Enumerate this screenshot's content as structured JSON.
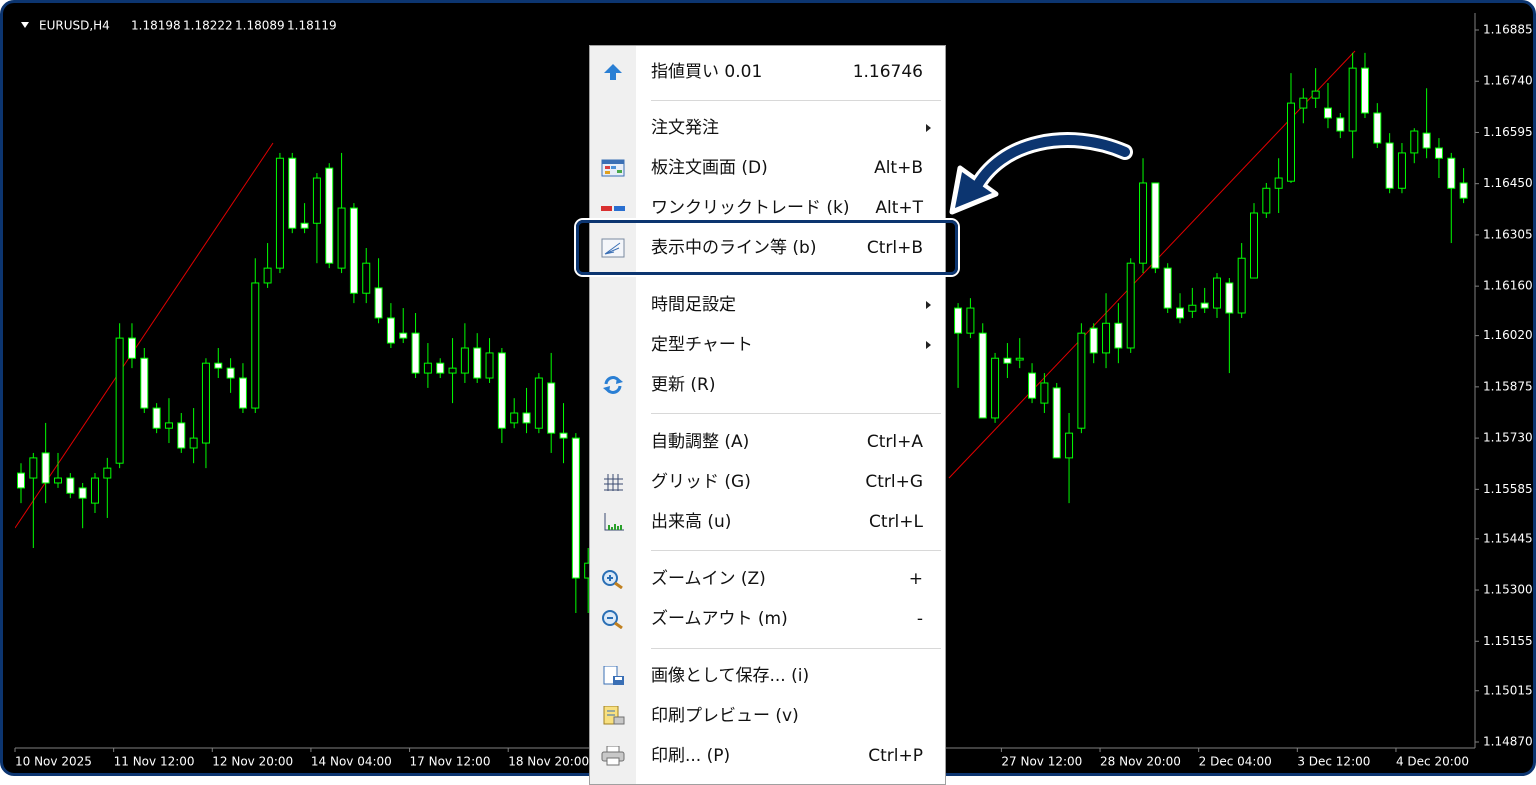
{
  "header": {
    "symbol": "EURUSD,H4",
    "ohlc": [
      1.18198,
      1.18222,
      1.18089,
      1.18119
    ]
  },
  "chart_data": {
    "type": "candlestick",
    "ylim": [
      1.14853,
      1.16933
    ],
    "yticks": [
      {
        "value": 1.16885,
        "label": "1.16885"
      },
      {
        "value": 1.1674,
        "label": "1.16740"
      },
      {
        "value": 1.16595,
        "label": "1.16595"
      },
      {
        "value": 1.1645,
        "label": "1.16450"
      },
      {
        "value": 1.16305,
        "label": "1.16305"
      },
      {
        "value": 1.1616,
        "label": "1.16160"
      },
      {
        "value": 1.1602,
        "label": "1.16020"
      },
      {
        "value": 1.15875,
        "label": "1.15875"
      },
      {
        "value": 1.1573,
        "label": "1.15730"
      },
      {
        "value": 1.15585,
        "label": "1.15585"
      },
      {
        "value": 1.15445,
        "label": "1.15445"
      },
      {
        "value": 1.153,
        "label": "1.15300"
      },
      {
        "value": 1.15155,
        "label": "1.15155"
      },
      {
        "value": 1.15015,
        "label": "1.15015"
      },
      {
        "value": 1.1487,
        "label": "1.14870"
      }
    ],
    "x_labels": [
      "10 Nov 2025",
      "11 Nov 12:00",
      "12 Nov 20:00",
      "14 Nov 04:00",
      "17 Nov 12:00",
      "18 Nov 20:00",
      null,
      null,
      null,
      null,
      "27 Nov 12:00",
      "28 Nov 20:00",
      "2 Dec 04:00",
      "3 Dec 12:00",
      "4 Dec 20:00"
    ],
    "color": "#00ff00",
    "open": [
      1.15631,
      1.15617,
      1.15688,
      1.15603,
      1.15617,
      1.15589,
      1.15546,
      1.15617,
      1.15659,
      1.16013,
      1.15956,
      1.15815,
      1.15758,
      1.15773,
      1.15702,
      1.15716,
      1.15942,
      1.15928,
      1.159,
      1.15815,
      1.16169,
      1.16211,
      1.16522,
      1.16338,
      1.16338,
      1.16494,
      1.16211,
      1.16381,
      1.1614,
      1.16155,
      1.1607,
      1.16027,
      1.16027,
      1.15914,
      1.15942,
      1.15914,
      1.15914,
      1.15985,
      1.159,
      1.15971,
      1.15773,
      1.15801,
      1.15758,
      1.15886,
      1.15744,
      1.1573,
      1.15334,
      null,
      null,
      null,
      null,
      null,
      null,
      null,
      null,
      null,
      null,
      null,
      null,
      null,
      null,
      null,
      null,
      null,
      null,
      null,
      null,
      null,
      null,
      null,
      null,
      null,
      null,
      null,
      null,
      null,
      1.16098,
      1.16027,
      1.16027,
      1.15787,
      1.15956,
      1.15951,
      1.15914,
      1.15829,
      1.15872,
      1.15674,
      1.15758,
      1.16041,
      1.15971,
      1.16055,
      1.15985,
      1.16225,
      1.16452,
      1.16211,
      1.16098,
      1.16089,
      1.16112,
      1.16098,
      1.16169,
      1.16084,
      1.16183,
      1.16367,
      1.16437,
      1.16457,
      1.16664,
      1.16692,
      1.16664,
      1.16636,
      1.16599,
      1.16777,
      1.1665,
      1.16565,
      1.16437,
      1.16537,
      1.16593,
      1.16551,
      1.16522,
      1.16452
    ],
    "high": [
      1.15659,
      1.15688,
      1.15773,
      1.15688,
      1.15631,
      1.15603,
      1.15631,
      1.15674,
      1.16055,
      1.16055,
      1.15985,
      1.15829,
      1.15843,
      1.15801,
      1.15815,
      1.15956,
      1.15985,
      1.15956,
      1.15942,
      1.16239,
      1.16282,
      1.16537,
      1.16537,
      1.16395,
      1.1648,
      1.16508,
      1.16537,
      1.16395,
      1.16268,
      1.16239,
      1.16112,
      1.16098,
      1.16084,
      1.15999,
      1.15956,
      1.16013,
      1.16055,
      1.16027,
      1.16013,
      1.15985,
      1.15843,
      1.15872,
      1.15914,
      1.15971,
      1.15829,
      1.15744,
      1.15419,
      null,
      null,
      null,
      null,
      null,
      null,
      null,
      null,
      null,
      null,
      null,
      null,
      null,
      null,
      null,
      null,
      null,
      null,
      null,
      null,
      null,
      null,
      null,
      null,
      null,
      null,
      null,
      null,
      null,
      1.16112,
      1.16126,
      1.16055,
      1.15971,
      1.15999,
      1.16013,
      1.15942,
      1.15914,
      1.15886,
      1.15801,
      1.16055,
      1.16055,
      1.1614,
      1.16112,
      1.16239,
      1.16522,
      1.16452,
      1.16225,
      1.1614,
      1.16155,
      1.16155,
      1.16197,
      1.16183,
      1.16282,
      1.16395,
      1.16452,
      1.16522,
      1.16763,
      1.1672,
      1.16777,
      1.16735,
      1.1665,
      1.1682,
      1.1682,
      1.16678,
      1.16593,
      1.16565,
      1.16607,
      1.1672,
      1.16579,
      1.16537,
      1.16494
    ],
    "low": [
      1.15546,
      1.15419,
      1.15546,
      1.15589,
      1.1556,
      1.15475,
      1.15518,
      1.15504,
      1.15645,
      1.15928,
      1.15801,
      1.15744,
      1.15716,
      1.15688,
      1.15659,
      1.15645,
      1.159,
      1.15858,
      1.15801,
      1.15801,
      1.16155,
      1.16197,
      1.1631,
      1.1631,
      1.16225,
      1.16211,
      1.16197,
      1.16112,
      1.16112,
      1.16055,
      1.15985,
      1.15999,
      1.159,
      1.15872,
      1.159,
      1.15829,
      1.15886,
      1.15886,
      1.15886,
      1.15716,
      1.15758,
      1.15744,
      1.15744,
      1.15688,
      1.15659,
      1.15235,
      1.15235,
      null,
      null,
      null,
      null,
      null,
      null,
      null,
      null,
      null,
      null,
      null,
      null,
      null,
      null,
      null,
      null,
      null,
      null,
      null,
      null,
      null,
      null,
      null,
      null,
      null,
      null,
      null,
      null,
      null,
      1.15872,
      1.16013,
      1.15787,
      1.15773,
      1.159,
      1.15928,
      1.15829,
      1.15801,
      1.15674,
      1.15546,
      1.15744,
      1.15942,
      1.15928,
      1.15942,
      1.15971,
      1.16197,
      1.16197,
      1.16084,
      1.16055,
      1.1607,
      1.16084,
      1.1607,
      1.15914,
      1.1607,
      1.16183,
      1.16353,
      1.16367,
      1.16452,
      1.16621,
      1.16664,
      1.16607,
      1.16579,
      1.16522,
      1.16636,
      1.16551,
      1.16423,
      1.16423,
      1.16508,
      1.16522,
      1.16466,
      1.16282,
      1.16395
    ],
    "close": [
      1.15589,
      1.15674,
      1.15603,
      1.15617,
      1.15574,
      1.1556,
      1.15617,
      1.15645,
      1.16013,
      1.15956,
      1.15815,
      1.15758,
      1.15773,
      1.15702,
      1.1573,
      1.15942,
      1.15928,
      1.159,
      1.15815,
      1.16169,
      1.16211,
      1.16522,
      1.16324,
      1.16324,
      1.16466,
      1.16225,
      1.16381,
      1.1614,
      1.16225,
      1.1607,
      1.15999,
      1.16013,
      1.15914,
      1.15942,
      1.15914,
      1.15928,
      1.15985,
      1.159,
      1.15971,
      1.15758,
      1.15801,
      1.15773,
      1.159,
      1.15744,
      1.1573,
      1.15334,
      1.15376,
      null,
      null,
      null,
      null,
      null,
      null,
      null,
      null,
      null,
      null,
      null,
      null,
      null,
      null,
      null,
      null,
      null,
      null,
      null,
      null,
      null,
      null,
      null,
      null,
      null,
      null,
      null,
      null,
      null,
      1.16027,
      1.16098,
      1.15787,
      1.15956,
      1.15942,
      1.15956,
      1.15843,
      1.15886,
      1.15674,
      1.15744,
      1.16027,
      1.15971,
      1.16055,
      1.15985,
      1.16225,
      1.16452,
      1.16211,
      1.16098,
      1.1607,
      1.16106,
      1.16098,
      1.16183,
      1.16084,
      1.16239,
      1.16367,
      1.16437,
      1.16466,
      1.16678,
      1.16692,
      1.16712,
      1.16636,
      1.16599,
      1.16777,
      1.1665,
      1.16565,
      1.16437,
      1.16537,
      1.16599,
      1.16551,
      1.16522,
      1.16437,
      1.16409
    ]
  },
  "context_menu": {
    "groups": [
      [
        {
          "label": "指値買い 0.01",
          "shortcut": "1.16746"
        }
      ],
      [
        {
          "label": "注文発注"
        },
        {
          "label": "板注文画面 (D)",
          "shortcut": "Alt+B"
        },
        {
          "label": "ワンクリックトレード (k)",
          "shortcut": "Alt+T"
        },
        {
          "label": "表示中のライン等 (b)",
          "shortcut": "Ctrl+B"
        }
      ],
      [
        {
          "label": "時間足設定"
        },
        {
          "label": "定型チャート"
        },
        {
          "label": "更新 (R)"
        }
      ],
      [
        {
          "label": "自動調整 (A)",
          "shortcut": "Ctrl+A"
        },
        {
          "label": "グリッド (G)",
          "shortcut": "Ctrl+G"
        },
        {
          "label": "出来高 (u)",
          "shortcut": "Ctrl+L"
        }
      ],
      [
        {
          "label": "ズームイン (Z)",
          "shortcut": "+"
        },
        {
          "label": "ズームアウト (m)",
          "shortcut": "-"
        }
      ],
      [
        {
          "label": "画像として保存... (i)"
        },
        {
          "label": "印刷プレビュー (v)"
        },
        {
          "label": "印刷... (P)",
          "shortcut": "Ctrl+P"
        }
      ]
    ]
  }
}
